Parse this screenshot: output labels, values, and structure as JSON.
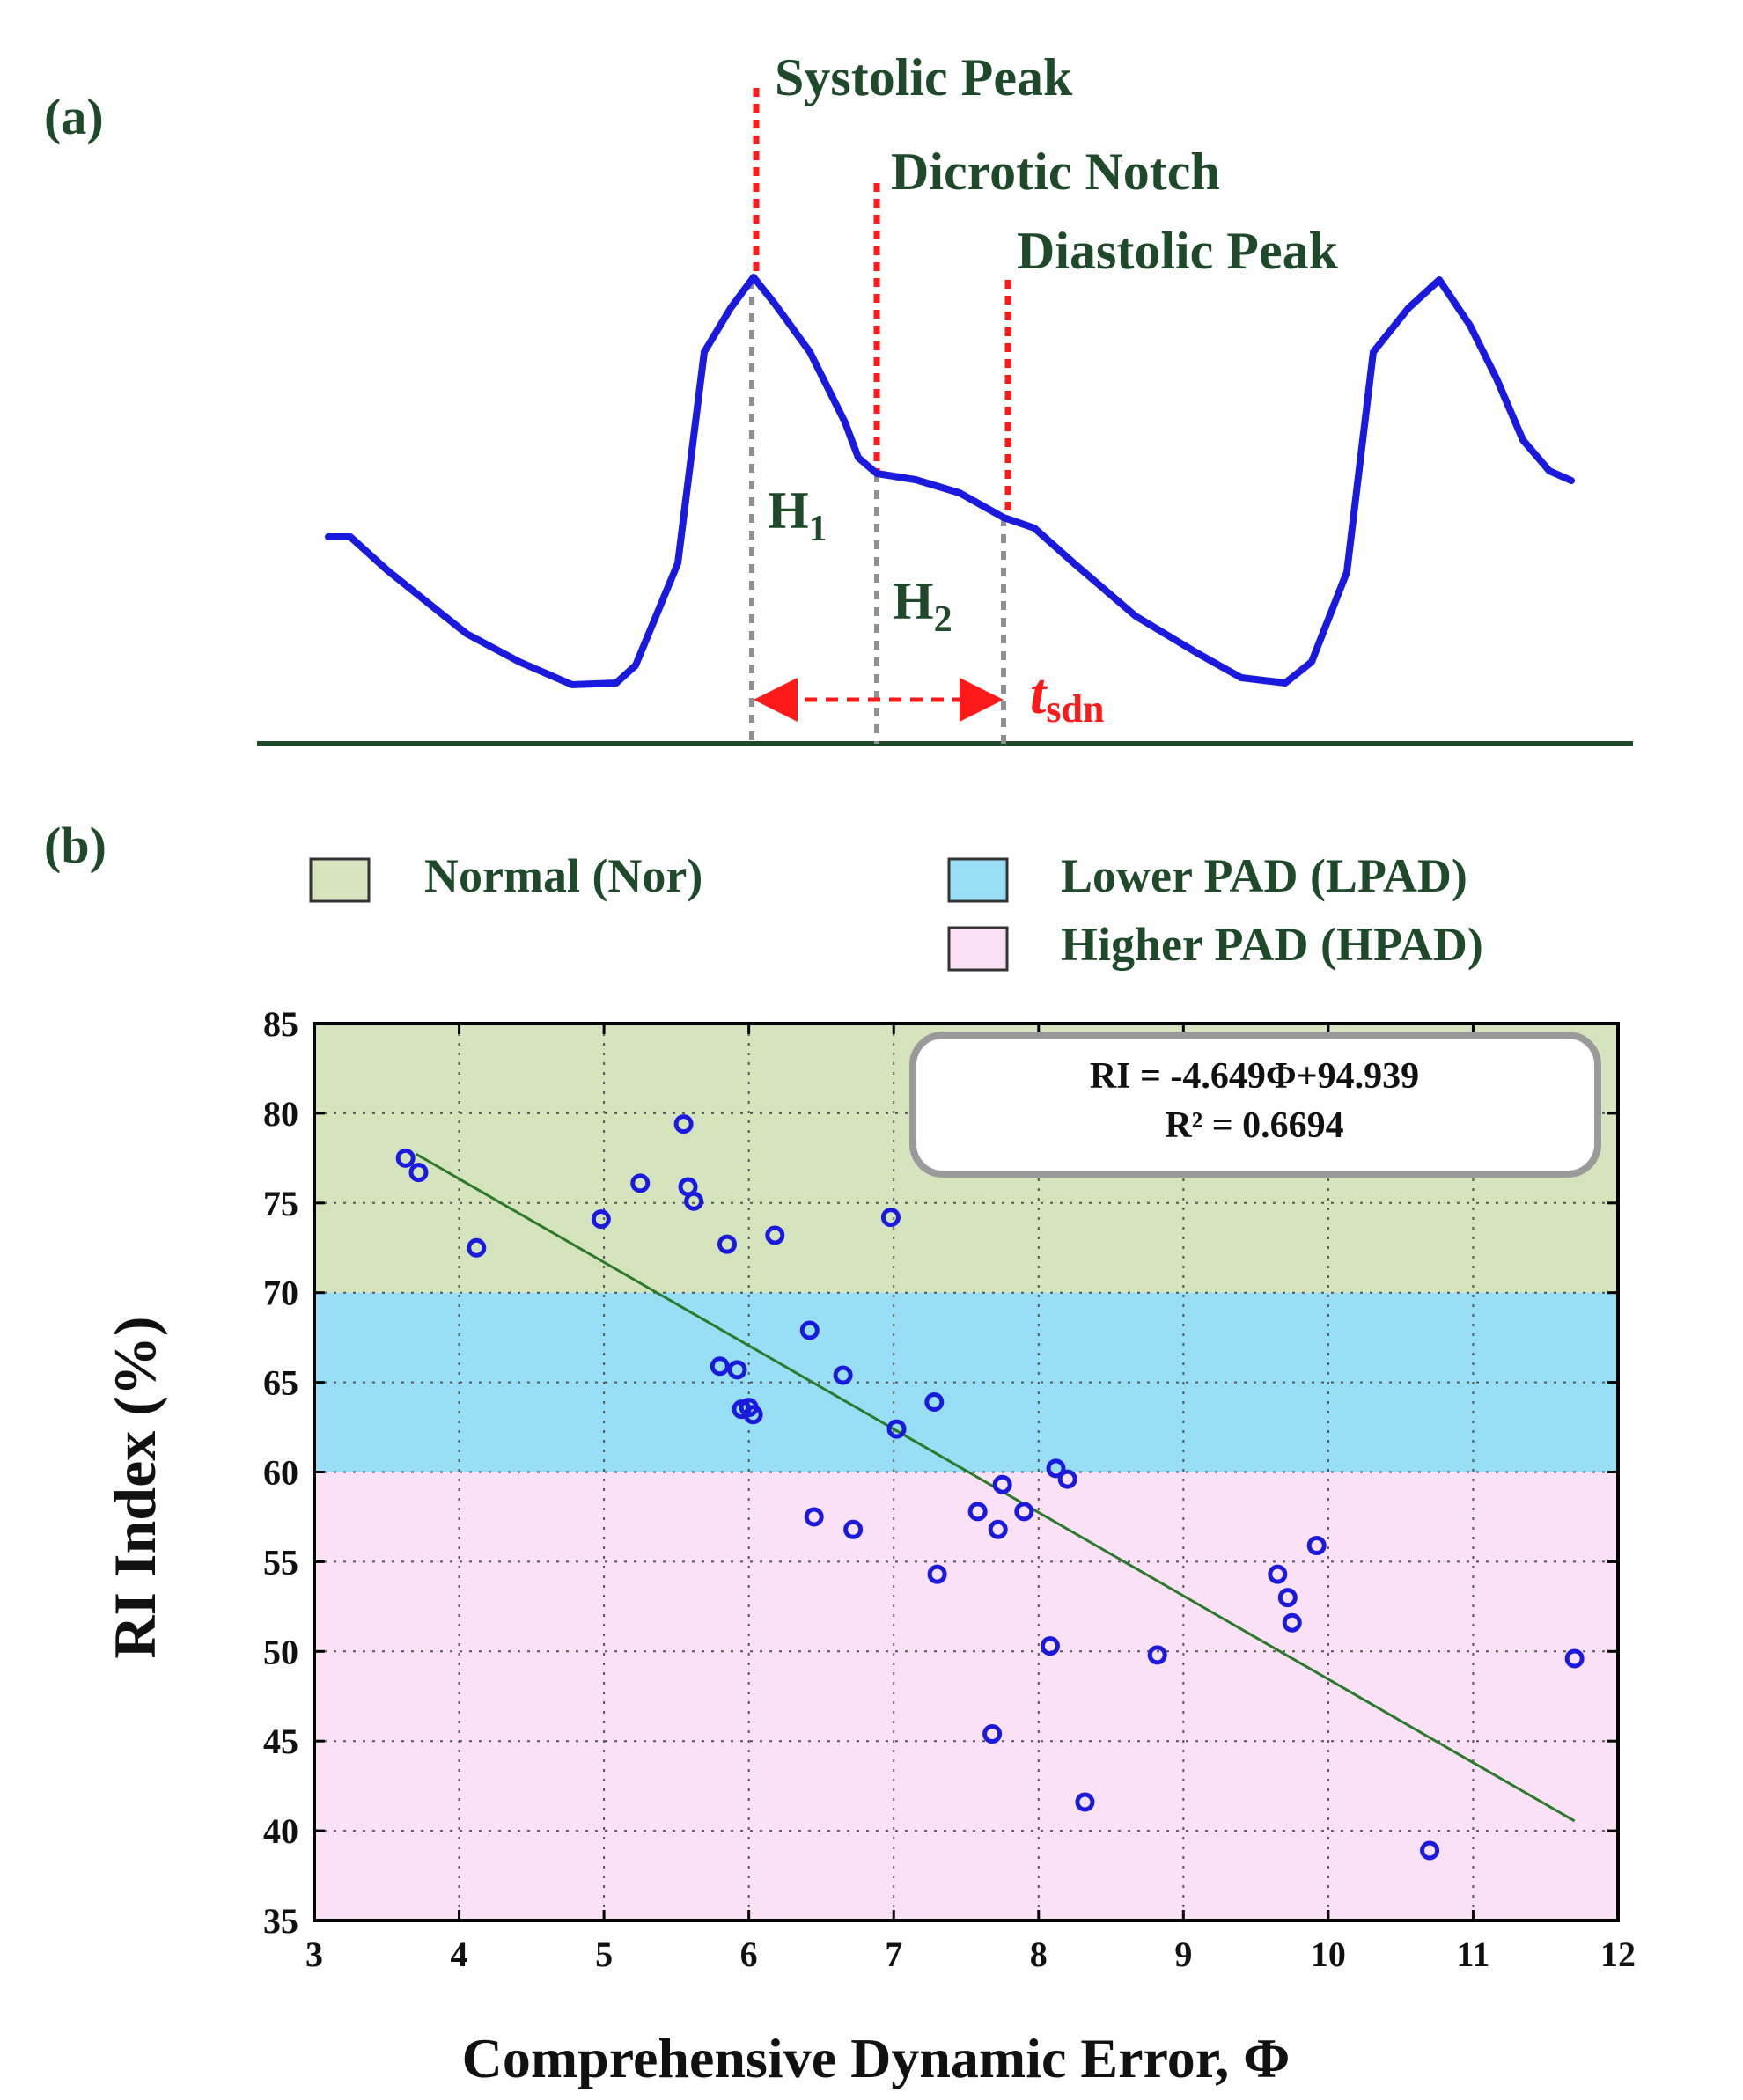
{
  "panel_a": {
    "label": "(a)",
    "annotations": {
      "systolic_peak": "Systolic Peak",
      "dicrotic_notch": "Dicrotic Notch",
      "diastolic_peak": "Diastolic Peak",
      "h1_base": "H",
      "h1_sub": "1",
      "h2_base": "H",
      "h2_sub": "2",
      "t_base": "t",
      "t_sub": "sdn"
    },
    "colors": {
      "waveform": "#1a1adf",
      "marker": "#ff1a1a",
      "guide": "#909090",
      "baseline": "#1f4a2a",
      "text": "#1f4a2a"
    }
  },
  "panel_b": {
    "label": "(b)",
    "legend": [
      {
        "label": "Normal (Nor)",
        "color": "#d6e4bd"
      },
      {
        "label": "Lower PAD (LPAD)",
        "color": "#98dff6"
      },
      {
        "label": "Higher PAD (HPAD)",
        "color": "#fbe1f6"
      }
    ],
    "regression_box": {
      "equation": "RI = -4.649Φ+94.939",
      "r_squared": "R² = 0.6694"
    }
  },
  "chart_data": {
    "type": "scatter",
    "title": "",
    "xlabel": "Comprehensive Dynamic Error, Φ",
    "ylabel": "RI Index (%)",
    "xlim": [
      3,
      12
    ],
    "ylim": [
      35,
      85
    ],
    "x_ticks": [
      3,
      4,
      5,
      6,
      7,
      8,
      9,
      10,
      11,
      12
    ],
    "y_ticks": [
      35,
      40,
      45,
      50,
      55,
      60,
      65,
      70,
      75,
      80,
      85
    ],
    "grid": true,
    "regions": [
      {
        "name": "Normal (Nor)",
        "y_from": 70,
        "y_to": 85,
        "color": "#d6e4bd"
      },
      {
        "name": "Lower PAD (LPAD)",
        "y_from": 60,
        "y_to": 70,
        "color": "#98dff6"
      },
      {
        "name": "Higher PAD (HPAD)",
        "y_from": 35,
        "y_to": 60,
        "color": "#fbe1f6"
      }
    ],
    "regression": {
      "slope": -4.649,
      "intercept": 94.939,
      "x_range": [
        3.7,
        11.7
      ],
      "color": "#2a7a2a"
    },
    "series": [
      {
        "name": "subjects",
        "color": "#1a1adf",
        "points": [
          [
            3.63,
            77.5
          ],
          [
            3.72,
            76.7
          ],
          [
            4.12,
            72.5
          ],
          [
            4.98,
            74.1
          ],
          [
            5.25,
            76.1
          ],
          [
            5.55,
            79.4
          ],
          [
            5.58,
            75.9
          ],
          [
            5.62,
            75.1
          ],
          [
            5.85,
            72.7
          ],
          [
            6.18,
            73.2
          ],
          [
            6.98,
            74.2
          ],
          [
            5.8,
            65.9
          ],
          [
            5.92,
            65.7
          ],
          [
            5.95,
            63.5
          ],
          [
            6.0,
            63.6
          ],
          [
            6.03,
            63.2
          ],
          [
            6.42,
            67.9
          ],
          [
            6.65,
            65.4
          ],
          [
            7.02,
            62.4
          ],
          [
            7.28,
            63.9
          ],
          [
            6.45,
            57.5
          ],
          [
            6.72,
            56.8
          ],
          [
            7.3,
            54.3
          ],
          [
            7.58,
            57.8
          ],
          [
            7.72,
            56.8
          ],
          [
            7.75,
            59.3
          ],
          [
            7.9,
            57.8
          ],
          [
            8.12,
            60.2
          ],
          [
            8.2,
            59.6
          ],
          [
            8.08,
            50.3
          ],
          [
            7.68,
            45.4
          ],
          [
            8.32,
            41.6
          ],
          [
            8.82,
            49.8
          ],
          [
            9.65,
            54.3
          ],
          [
            9.72,
            53.0
          ],
          [
            9.75,
            51.6
          ],
          [
            9.92,
            55.9
          ],
          [
            10.7,
            38.9
          ],
          [
            11.7,
            49.6
          ]
        ]
      }
    ]
  }
}
